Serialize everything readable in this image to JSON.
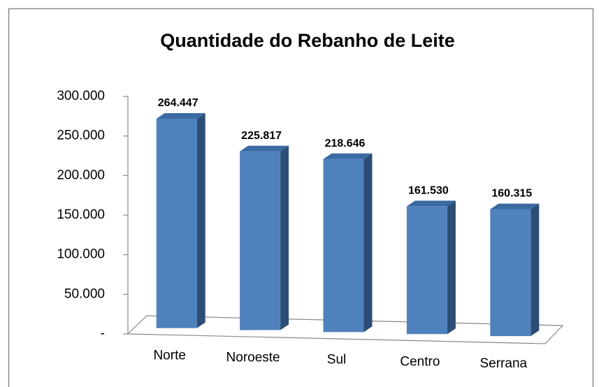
{
  "chart_data": {
    "type": "bar3d",
    "title": "Quantidade do Rebanho de Leite",
    "categories": [
      "Norte",
      "Noroeste",
      "Sul",
      "Centro",
      "Serrana"
    ],
    "values": [
      264447,
      225817,
      218646,
      161530,
      160315
    ],
    "value_labels": [
      "264.447",
      "225.817",
      "218.646",
      "161.530",
      "160.315"
    ],
    "color": "#4f81bd",
    "ylim": [
      0,
      300000
    ],
    "yticks": [
      {
        "value": 0,
        "label": "-"
      },
      {
        "value": 50000,
        "label": "50.000"
      },
      {
        "value": 100000,
        "label": "100.000"
      },
      {
        "value": 150000,
        "label": "150.000"
      },
      {
        "value": 200000,
        "label": "200.000"
      },
      {
        "value": 250000,
        "label": "250.000"
      },
      {
        "value": 300000,
        "label": "300.000"
      }
    ],
    "grid": false
  }
}
